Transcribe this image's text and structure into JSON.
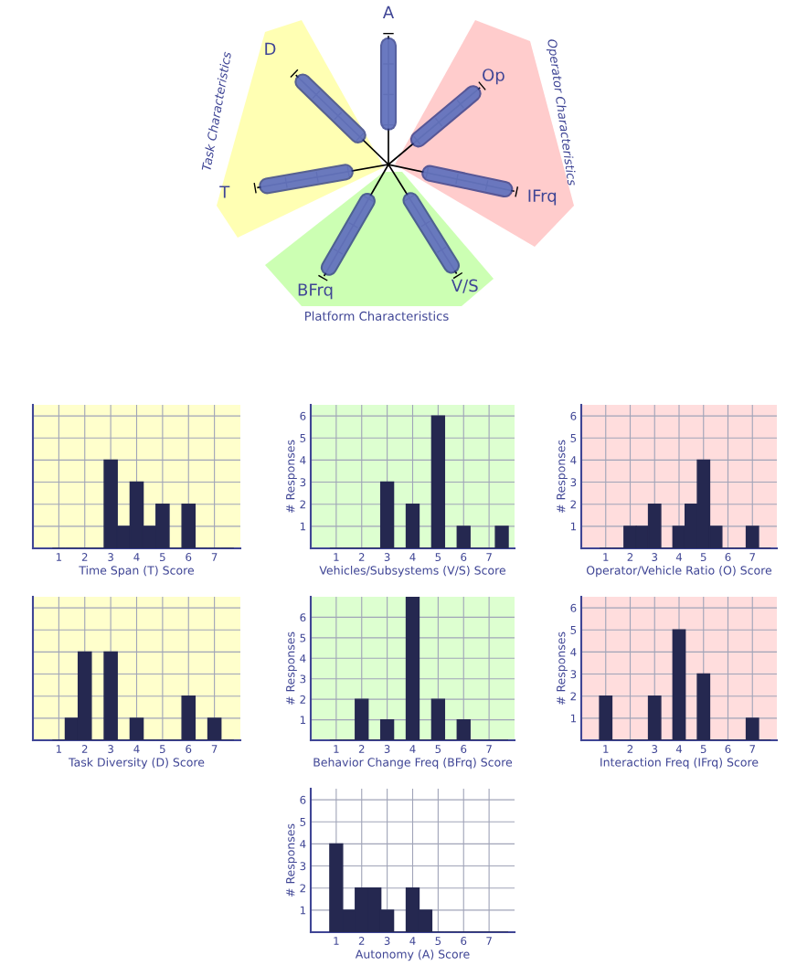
{
  "chart_data": [
    {
      "type": "other",
      "categories": [
        "A",
        "Op",
        "IFrq",
        "V/S",
        "BFrq",
        "T",
        "D"
      ],
      "annotations": [
        "Operator Characteristics",
        "Platform Characteristics",
        "Task Characteristics"
      ]
    },
    {
      "type": "histogram",
      "xlabel": "Time Span (T) Score",
      "bins": [
        0.75,
        1.25,
        1.75,
        2.25,
        2.75,
        3.25,
        3.75,
        4.25,
        4.75,
        5.25,
        5.75,
        6.25,
        6.75,
        7.25,
        7.75
      ],
      "values": [
        0,
        0,
        0,
        0,
        4,
        1,
        3,
        1,
        2,
        0,
        2,
        0,
        0,
        0
      ],
      "color": "#252850",
      "xlim": [
        0,
        8
      ],
      "ylim": [
        0,
        6.5
      ],
      "xticks": [
        1,
        2,
        3,
        4,
        5,
        6,
        7
      ],
      "yticks": [
        1,
        2,
        3,
        4,
        5,
        6
      ],
      "grid": true,
      "tick_labels": "x"
    },
    {
      "type": "histogram",
      "xlabel": "Vehicles/Subsystems (V/S) Score",
      "ylabel": "# Responses",
      "bins": [
        0.75,
        1.25,
        1.75,
        2.25,
        2.75,
        3.25,
        3.75,
        4.25,
        4.75,
        5.25,
        5.75,
        6.25,
        6.75,
        7.25,
        7.75
      ],
      "values": [
        0,
        0,
        0,
        0,
        3,
        0,
        2,
        0,
        6,
        0,
        1,
        0,
        0,
        1
      ],
      "color": "#252850",
      "xlim": [
        0,
        8
      ],
      "ylim": [
        0,
        6.5
      ],
      "xticks": [
        1,
        2,
        3,
        4,
        5,
        6,
        7
      ],
      "yticks": [
        1,
        2,
        3,
        4,
        5,
        6
      ],
      "grid": true
    },
    {
      "type": "histogram",
      "xlabel": "Operator/Vehicle Ratio (O) Score",
      "ylabel": "# Responses",
      "bins": [
        0.75,
        1.25,
        1.75,
        2.25,
        2.75,
        3.25,
        3.75,
        4.25,
        4.75,
        5.25,
        5.75,
        6.25,
        6.75,
        7.25,
        7.75
      ],
      "values": [
        0,
        0,
        1,
        1,
        2,
        0,
        1,
        2,
        4,
        1,
        0,
        0,
        1,
        0
      ],
      "color": "#252850",
      "xlim": [
        0,
        8
      ],
      "ylim": [
        0,
        6.5
      ],
      "xticks": [
        1,
        2,
        3,
        4,
        5,
        6,
        7
      ],
      "yticks": [
        1,
        2,
        3,
        4,
        5,
        6
      ],
      "grid": true
    },
    {
      "type": "histogram",
      "xlabel": "Task Diversity (D) Score",
      "bins": [
        0.75,
        1.25,
        1.75,
        2.25,
        2.75,
        3.25,
        3.75,
        4.25,
        4.75,
        5.25,
        5.75,
        6.25,
        6.75,
        7.25,
        7.75
      ],
      "values": [
        0,
        1,
        4,
        0,
        4,
        0,
        1,
        0,
        0,
        0,
        2,
        0,
        1,
        0
      ],
      "color": "#252850",
      "xlim": [
        0,
        8
      ],
      "ylim": [
        0,
        6.5
      ],
      "xticks": [
        1,
        2,
        3,
        4,
        5,
        6,
        7
      ],
      "yticks": [
        1,
        2,
        3,
        4,
        5,
        6
      ],
      "grid": true,
      "tick_labels": "x"
    },
    {
      "type": "histogram",
      "xlabel": "Behavior Change Freq (BFrq) Score",
      "ylabel": "# Responses",
      "bins": [
        0.75,
        1.25,
        1.75,
        2.25,
        2.75,
        3.25,
        3.75,
        4.25,
        4.75,
        5.25,
        5.75,
        6.25,
        6.75,
        7.25,
        7.75
      ],
      "values": [
        0,
        0,
        2,
        0,
        1,
        0,
        7,
        0,
        2,
        0,
        1,
        0,
        0,
        0
      ],
      "color": "#252850",
      "xlim": [
        0,
        8
      ],
      "ylim": [
        0,
        7
      ],
      "xticks": [
        1,
        2,
        3,
        4,
        5,
        6,
        7
      ],
      "yticks": [
        1,
        2,
        3,
        4,
        5,
        6
      ],
      "grid": true
    },
    {
      "type": "histogram",
      "xlabel": "Interaction Freq (IFrq) Score",
      "ylabel": "# Responses",
      "bins": [
        0.75,
        1.25,
        1.75,
        2.25,
        2.75,
        3.25,
        3.75,
        4.25,
        4.75,
        5.25,
        5.75,
        6.25,
        6.75,
        7.25,
        7.75
      ],
      "values": [
        2,
        0,
        0,
        0,
        2,
        0,
        5,
        0,
        3,
        0,
        0,
        0,
        1,
        0
      ],
      "color": "#252850",
      "xlim": [
        0,
        8
      ],
      "ylim": [
        0,
        6.5
      ],
      "xticks": [
        1,
        2,
        3,
        4,
        5,
        6,
        7
      ],
      "yticks": [
        1,
        2,
        3,
        4,
        5,
        6
      ],
      "grid": true
    },
    {
      "type": "histogram",
      "xlabel": "Autonomy (A) Score",
      "ylabel": "# Responses",
      "bins": [
        0.75,
        1.25,
        1.75,
        2.25,
        2.75,
        3.25,
        3.75,
        4.25,
        4.75,
        5.25,
        5.75,
        6.25,
        6.75,
        7.25,
        7.75
      ],
      "values": [
        4,
        1,
        2,
        2,
        1,
        0,
        2,
        1,
        0,
        0,
        0,
        0,
        0,
        0
      ],
      "color": "#252850",
      "xlim": [
        0,
        8
      ],
      "ylim": [
        0,
        6.5
      ],
      "xticks": [
        1,
        2,
        3,
        4,
        5,
        6,
        7
      ],
      "yticks": [
        1,
        2,
        3,
        4,
        5,
        6
      ],
      "grid": true
    }
  ]
}
